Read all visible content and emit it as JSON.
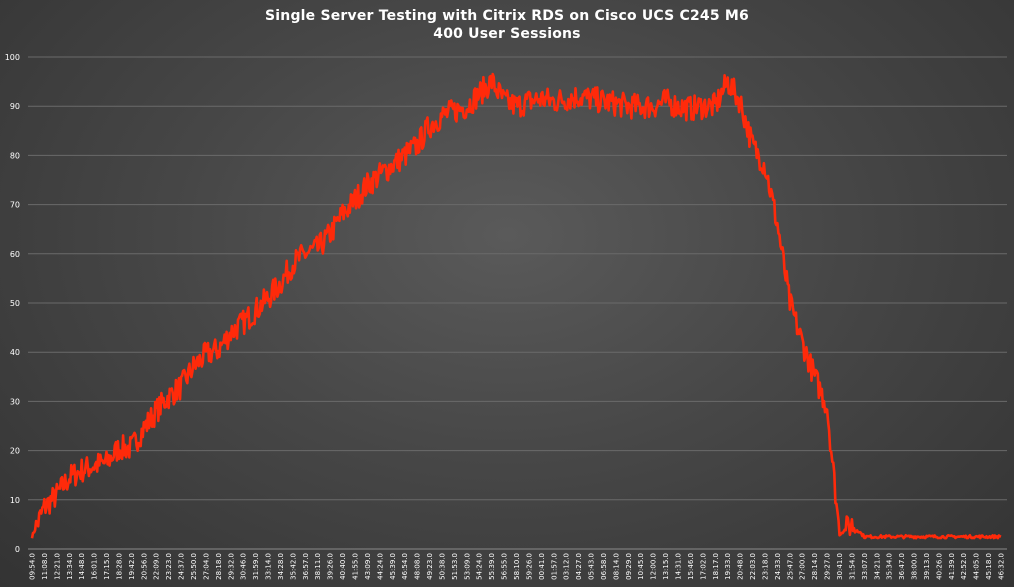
{
  "chart_title": {
    "line1": "Single Server Testing with Citrix RDS on Cisco UCS C245 M6",
    "line2": "400 User Sessions"
  },
  "colors": {
    "series": "#ff2a0a",
    "grid": "#6a6a6a",
    "text": "#ffffff"
  },
  "chart_data": {
    "type": "line",
    "title": "Single Server Testing with Citrix RDS on Cisco UCS C245 M6",
    "subtitle": "400 User Sessions",
    "xlabel": "",
    "ylabel": "",
    "ylim": [
      0,
      100
    ],
    "yticks": [
      0,
      10,
      20,
      30,
      40,
      50,
      60,
      70,
      80,
      90,
      100
    ],
    "grid": true,
    "legend": "none",
    "x": [
      "09:54.0",
      "11:08.0",
      "12:21.0",
      "13:34.0",
      "14:48.0",
      "16:01.0",
      "17:15.0",
      "18:28.0",
      "19:42.0",
      "20:56.0",
      "22:09.0",
      "23:23.0",
      "24:37.0",
      "25:50.0",
      "27:04.0",
      "28:18.0",
      "29:32.0",
      "30:46.0",
      "31:59.0",
      "33:14.0",
      "34:28.0",
      "35:42.0",
      "36:57.0",
      "38:11.0",
      "39:26.0",
      "40:40.0",
      "41:55.0",
      "43:09.0",
      "44:24.0",
      "45:39.0",
      "46:54.0",
      "48:08.0",
      "49:23.0",
      "50:38.0",
      "51:53.0",
      "53:09.0",
      "54:24.0",
      "55:39.0",
      "56:55.0",
      "58:10.0",
      "59:26.0",
      "00:41.0",
      "01:57.0",
      "03:12.0",
      "04:27.0",
      "05:43.0",
      "06:58.0",
      "08:14.0",
      "09:29.0",
      "10:45.0",
      "12:00.0",
      "13:15.0",
      "14:31.0",
      "15:46.0",
      "17:02.0",
      "18:17.0",
      "19:33.0",
      "20:48.0",
      "22:03.0",
      "23:18.0",
      "24:33.0",
      "25:47.0",
      "27:00.0",
      "28:14.0",
      "29:27.0",
      "30:41.0",
      "31:54.0",
      "33:07.0",
      "34:21.0",
      "35:34.0",
      "36:47.0",
      "38:00.0",
      "39:13.0",
      "40:26.0",
      "41:39.0",
      "42:52.0",
      "44:05.0",
      "45:18.0",
      "46:32.0"
    ],
    "series": [
      {
        "values": [
          2.5,
          8.5,
          11,
          14.5,
          16,
          17,
          17.5,
          20.5,
          20.5,
          24.5,
          28,
          31,
          33,
          37,
          39.5,
          40.5,
          44,
          46,
          48.5,
          51,
          54,
          58,
          60,
          61,
          64,
          68,
          71,
          74,
          76,
          78,
          80,
          82,
          86,
          88,
          89,
          90,
          92.5,
          95,
          91,
          90,
          91,
          91.5,
          91,
          91.5,
          92,
          91.5,
          91,
          90.5,
          90,
          90,
          90,
          91,
          90,
          89.5,
          90,
          90,
          95,
          91,
          82,
          78,
          66,
          50,
          42,
          35,
          29,
          3,
          5,
          2.5,
          2.5,
          2.5,
          2.5,
          2.5,
          2.5,
          2.5,
          2.5,
          2.5,
          2.5,
          2.5,
          2.5
        ]
      }
    ]
  }
}
